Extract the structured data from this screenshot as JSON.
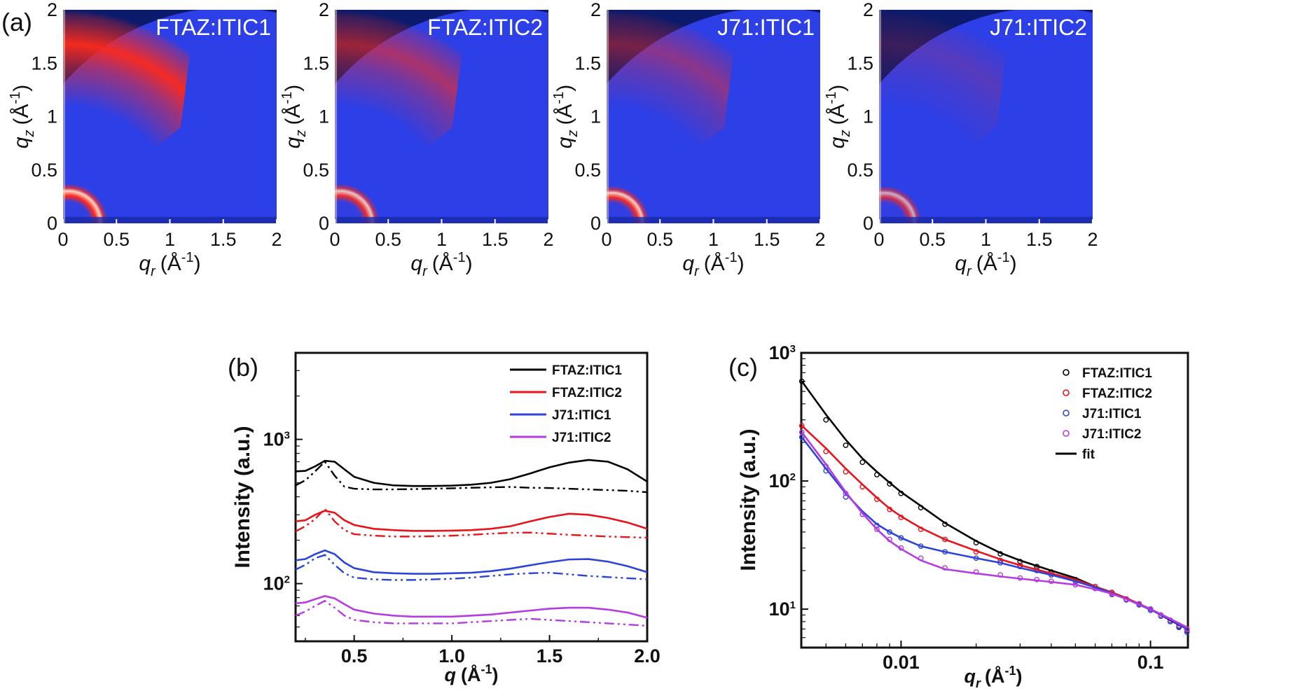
{
  "panel_labels": {
    "a": "(a)",
    "b": "(b)",
    "c": "(c)"
  },
  "colors": {
    "FTAZ:ITIC1": "#000000",
    "FTAZ:ITIC2": "#e8141c",
    "J71:ITIC1": "#2c45d8",
    "J71:ITIC2": "#b43ce0",
    "fit": "#000000",
    "map_background": "#2d3fe6",
    "map_empty": "#0b1a6b",
    "map_hot": "#ff2a1a"
  },
  "chart_data": [
    {
      "type": "heatmap",
      "panel": "a",
      "title": "FTAZ:ITIC1",
      "xlabel": "q",
      "xlabel_sub": "r",
      "xlabel_unit": "(Å",
      "ylabel": "q",
      "ylabel_sub": "z",
      "ylabel_unit": "(Å",
      "unit_exp": "-1",
      "unit_close": ")",
      "xlim": [
        0,
        2
      ],
      "ylim": [
        0,
        2
      ],
      "xticks": [
        "0",
        "0.5",
        "1",
        "1.5",
        "2"
      ],
      "yticks": [
        "0",
        "0.5",
        "1",
        "1.5",
        "2"
      ],
      "features": {
        "pi_stacking_arc_intensity": 0.95,
        "lamellar_ring_q": 0.3,
        "lamellar_ring_intensity": 1.0
      }
    },
    {
      "type": "heatmap",
      "panel": "a",
      "title": "FTAZ:ITIC2",
      "xlabel": "q",
      "xlabel_sub": "r",
      "xlabel_unit": "(Å",
      "ylabel": "q",
      "ylabel_sub": "z",
      "ylabel_unit": "(Å",
      "unit_exp": "-1",
      "unit_close": ")",
      "xlim": [
        0,
        2
      ],
      "ylim": [
        0,
        2
      ],
      "xticks": [
        "0",
        "0.5",
        "1",
        "1.5",
        "2"
      ],
      "yticks": [
        "0",
        "0.5",
        "1",
        "1.5",
        "2"
      ],
      "features": {
        "pi_stacking_arc_intensity": 0.6,
        "lamellar_ring_q": 0.3,
        "lamellar_ring_intensity": 0.9
      }
    },
    {
      "type": "heatmap",
      "panel": "a",
      "title": "J71:ITIC1",
      "xlabel": "q",
      "xlabel_sub": "r",
      "xlabel_unit": "(Å",
      "ylabel": "q",
      "ylabel_sub": "z",
      "ylabel_unit": "(Å",
      "unit_exp": "-1",
      "unit_close": ")",
      "xlim": [
        0,
        2
      ],
      "ylim": [
        0,
        2
      ],
      "xticks": [
        "0",
        "0.5",
        "1",
        "1.5",
        "2"
      ],
      "yticks": [
        "0",
        "0.5",
        "1",
        "1.5",
        "2"
      ],
      "features": {
        "pi_stacking_arc_intensity": 0.45,
        "lamellar_ring_q": 0.28,
        "lamellar_ring_intensity": 0.95
      }
    },
    {
      "type": "heatmap",
      "panel": "a",
      "title": "J71:ITIC2",
      "xlabel": "q",
      "xlabel_sub": "r",
      "xlabel_unit": "(Å",
      "ylabel": "q",
      "ylabel_sub": "z",
      "ylabel_unit": "(Å",
      "unit_exp": "-1",
      "unit_close": ")",
      "xlim": [
        0,
        2
      ],
      "ylim": [
        0,
        2
      ],
      "xticks": [
        "0",
        "0.5",
        "1",
        "1.5",
        "2"
      ],
      "yticks": [
        "0",
        "0.5",
        "1",
        "1.5",
        "2"
      ],
      "features": {
        "pi_stacking_arc_intensity": 0.2,
        "lamellar_ring_q": 0.28,
        "lamellar_ring_intensity": 0.75
      }
    },
    {
      "type": "line",
      "panel": "b",
      "xlabel": "q",
      "xlabel_unit": "(Å",
      "unit_exp": "-1",
      "unit_close": ")",
      "ylabel": "Intensity (a.u.)",
      "xlim": [
        0.2,
        2.0
      ],
      "ylim_log10": [
        1.6,
        3.6
      ],
      "yscale": "log",
      "xticks": [
        {
          "value": 0.5,
          "label": "0.5"
        },
        {
          "value": 1.0,
          "label": "1.0"
        },
        {
          "value": 1.5,
          "label": "1.5"
        },
        {
          "value": 2.0,
          "label": "2.0"
        }
      ],
      "yticks": [
        {
          "value": 100,
          "base": "10",
          "exp": "2"
        },
        {
          "value": 1000,
          "base": "10",
          "exp": "3"
        }
      ],
      "legend_position": "top-right",
      "x": [
        0.2,
        0.25,
        0.3,
        0.35,
        0.4,
        0.45,
        0.5,
        0.6,
        0.7,
        0.8,
        0.9,
        1.0,
        1.1,
        1.2,
        1.3,
        1.4,
        1.5,
        1.6,
        1.7,
        1.8,
        1.9,
        2.0
      ],
      "series": [
        {
          "name": "FTAZ:ITIC1",
          "values": [
            600,
            605,
            650,
            710,
            700,
            620,
            550,
            500,
            480,
            475,
            475,
            478,
            485,
            500,
            530,
            580,
            640,
            690,
            720,
            700,
            620,
            510
          ]
        },
        {
          "name": "FTAZ:ITIC2",
          "values": [
            270,
            275,
            300,
            320,
            310,
            275,
            255,
            240,
            235,
            232,
            232,
            233,
            235,
            240,
            250,
            270,
            290,
            305,
            300,
            285,
            265,
            240
          ]
        },
        {
          "name": "J71:ITIC1",
          "values": [
            145,
            148,
            160,
            170,
            160,
            140,
            128,
            120,
            118,
            117,
            117,
            118,
            119,
            122,
            127,
            134,
            141,
            147,
            148,
            142,
            132,
            120
          ]
        },
        {
          "name": "J71:ITIC2",
          "values": [
            73,
            74,
            78,
            82,
            79,
            72,
            66,
            62,
            60,
            59,
            59,
            59,
            60,
            61,
            63,
            65,
            67,
            68,
            68,
            66,
            63,
            58
          ]
        }
      ],
      "fits": [
        {
          "values": [
            480,
            520,
            600,
            700,
            560,
            470,
            455,
            450,
            450,
            452,
            455,
            458,
            462,
            465,
            468,
            462,
            460,
            455,
            450,
            445,
            440,
            430
          ]
        },
        {
          "values": [
            230,
            250,
            280,
            330,
            270,
            235,
            220,
            215,
            212,
            212,
            213,
            215,
            218,
            222,
            225,
            226,
            222,
            218,
            215,
            212,
            210,
            208
          ]
        },
        {
          "values": [
            125,
            135,
            150,
            158,
            135,
            118,
            110,
            107,
            106,
            106,
            107,
            108,
            110,
            113,
            116,
            118,
            119,
            116,
            113,
            111,
            109,
            107
          ]
        },
        {
          "values": [
            60,
            64,
            70,
            76,
            68,
            60,
            56,
            54,
            53,
            53,
            53,
            53,
            54,
            55,
            56,
            57,
            56,
            55,
            54,
            53,
            52,
            51
          ]
        }
      ]
    },
    {
      "type": "scatter",
      "panel": "c",
      "xlabel": "q",
      "xlabel_sub": "r",
      "xlabel_unit": "(Å",
      "unit_exp": "-1",
      "unit_close": ")",
      "ylabel": "Intensity (a.u.)",
      "xscale": "log",
      "yscale": "log",
      "xlim_log10": [
        -2.4,
        -0.85
      ],
      "ylim_log10": [
        0.7,
        3.0
      ],
      "xticks": [
        {
          "value": 0.01,
          "label": "0.01"
        },
        {
          "value": 0.1,
          "label": "0.1"
        }
      ],
      "yticks": [
        {
          "value": 10,
          "base": "10",
          "exp": "1"
        },
        {
          "value": 100,
          "base": "10",
          "exp": "2"
        },
        {
          "value": 1000,
          "base": "10",
          "exp": "3"
        }
      ],
      "legend_position": "top-right",
      "fit_label": "fit",
      "fit_x": [
        0.004,
        0.005,
        0.006,
        0.007,
        0.008,
        0.009,
        0.01,
        0.012,
        0.015,
        0.02,
        0.025,
        0.03,
        0.04,
        0.05,
        0.06,
        0.07,
        0.08,
        0.1,
        0.12,
        0.14
      ],
      "series": [
        {
          "name": "FTAZ:ITIC1",
          "x": [
            0.004,
            0.005,
            0.006,
            0.007,
            0.008,
            0.009,
            0.01,
            0.012,
            0.015,
            0.02,
            0.025,
            0.03,
            0.035,
            0.04,
            0.05,
            0.06,
            0.07,
            0.08,
            0.09,
            0.1,
            0.11,
            0.12,
            0.13,
            0.14
          ],
          "values": [
            600,
            300,
            190,
            140,
            112,
            95,
            80,
            62,
            46,
            33,
            27,
            23.5,
            21.5,
            19.5,
            17,
            15,
            13.5,
            12,
            11,
            10,
            9,
            8,
            7.3,
            6.8
          ],
          "fit": [
            600,
            330,
            210,
            150,
            118,
            97,
            82,
            64,
            47,
            34,
            27.5,
            24,
            20,
            17.5,
            15,
            13.5,
            12.2,
            10,
            8.2,
            7
          ]
        },
        {
          "name": "FTAZ:ITIC2",
          "x": [
            0.004,
            0.005,
            0.006,
            0.007,
            0.008,
            0.009,
            0.01,
            0.012,
            0.015,
            0.02,
            0.025,
            0.03,
            0.035,
            0.04,
            0.05,
            0.06,
            0.07,
            0.08,
            0.09,
            0.1,
            0.11,
            0.12,
            0.13,
            0.14
          ],
          "values": [
            270,
            170,
            118,
            90,
            72,
            60,
            52,
            42,
            35,
            28,
            24,
            22,
            20.5,
            19,
            17,
            15,
            13.5,
            12,
            11,
            10,
            9,
            8.2,
            7.5,
            7
          ],
          "fit": [
            270,
            180,
            125,
            94,
            74,
            61,
            53,
            43,
            35,
            28.5,
            24.5,
            22,
            19,
            17,
            15,
            13.5,
            12.2,
            10,
            8.4,
            7.2
          ]
        },
        {
          "name": "J71:ITIC1",
          "x": [
            0.004,
            0.005,
            0.006,
            0.007,
            0.008,
            0.009,
            0.01,
            0.012,
            0.015,
            0.02,
            0.025,
            0.03,
            0.035,
            0.04,
            0.05,
            0.06,
            0.07,
            0.08,
            0.09,
            0.1,
            0.11,
            0.12,
            0.13,
            0.14
          ],
          "values": [
            220,
            120,
            75,
            55,
            45,
            40,
            36,
            31,
            28,
            25,
            23,
            21.5,
            20,
            18.5,
            16.5,
            14.5,
            13,
            11.8,
            10.8,
            9.8,
            8.8,
            8,
            7.2,
            6.6
          ],
          "fit": [
            220,
            125,
            80,
            58,
            46,
            40,
            36,
            31,
            28,
            25,
            23,
            21,
            18.5,
            16.5,
            14.8,
            13.3,
            12,
            9.9,
            8.3,
            7
          ]
        },
        {
          "name": "J71:ITIC2",
          "x": [
            0.004,
            0.005,
            0.006,
            0.007,
            0.008,
            0.009,
            0.01,
            0.012,
            0.015,
            0.02,
            0.025,
            0.03,
            0.035,
            0.04,
            0.05,
            0.06,
            0.07,
            0.08,
            0.09,
            0.1,
            0.11,
            0.12,
            0.13,
            0.14
          ],
          "values": [
            240,
            130,
            80,
            55,
            42,
            35,
            30,
            25,
            21,
            19.5,
            18.5,
            17.5,
            17,
            16.5,
            15.5,
            14.5,
            13.2,
            12,
            11,
            10,
            9,
            8.2,
            7.5,
            6.9
          ],
          "fit": [
            240,
            135,
            82,
            56,
            42,
            34,
            29.5,
            24,
            20.5,
            19,
            18,
            17.3,
            16.3,
            15.5,
            14.3,
            13.2,
            12,
            10,
            8.4,
            7.2
          ]
        }
      ]
    }
  ]
}
